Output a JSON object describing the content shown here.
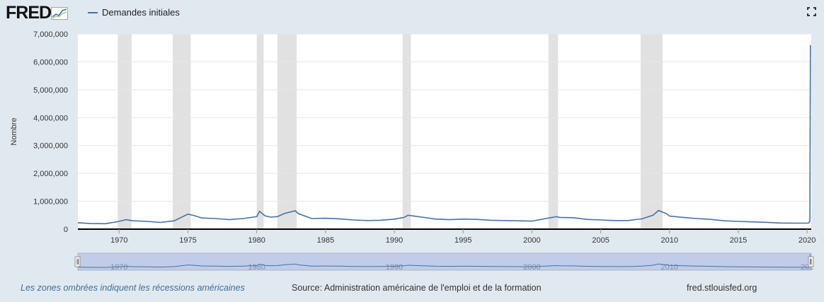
{
  "header": {
    "logo_text": "FRED",
    "legend_label": "Demandes initiales"
  },
  "footer": {
    "note": "Les zones ombrées indiquent les récessions américaines",
    "source": "Source: Administration américaine de l'emploi et de la formation",
    "site": "fred.stlouisfed.org"
  },
  "colors": {
    "series": "#4572a7",
    "recession": "#e1e1e1",
    "background": "#e1e9f0",
    "navigator_fill": "#c0cce8"
  },
  "icons": [
    "fred-logo-graph-icon",
    "fullscreen-icon",
    "navigator-handle-icon"
  ],
  "chart_data": {
    "type": "line",
    "title": "",
    "xlabel": "",
    "ylabel": "Nombre",
    "ylim": [
      0,
      7000000
    ],
    "xlim": [
      1967.0,
      2020.3
    ],
    "y_ticks": [
      "0",
      "1,000,000",
      "2,000,000",
      "3,000,000",
      "4,000,000",
      "5,000,000",
      "6,000,000",
      "7,000,000"
    ],
    "x_ticks": [
      "1970",
      "1975",
      "1980",
      "1985",
      "1990",
      "1995",
      "2000",
      "2005",
      "2010",
      "2015",
      "2020"
    ],
    "navigator_ticks": [
      "1970",
      "1980",
      "1990",
      "2000",
      "2010",
      "202"
    ],
    "grid": true,
    "legend_position": "top-left",
    "recessions": [
      [
        1969.9,
        1970.9
      ],
      [
        1973.9,
        1975.2
      ],
      [
        1980.0,
        1980.5
      ],
      [
        1981.5,
        1982.9
      ],
      [
        1990.6,
        1991.2
      ],
      [
        2001.2,
        2001.9
      ],
      [
        2007.9,
        2009.5
      ]
    ],
    "series": [
      {
        "name": "Demandes initiales",
        "points": [
          [
            1967.0,
            230000
          ],
          [
            1968.0,
            200000
          ],
          [
            1969.0,
            195000
          ],
          [
            1970.0,
            280000
          ],
          [
            1970.5,
            340000
          ],
          [
            1971.0,
            300000
          ],
          [
            1972.0,
            280000
          ],
          [
            1973.0,
            240000
          ],
          [
            1974.0,
            300000
          ],
          [
            1975.0,
            540000
          ],
          [
            1975.5,
            480000
          ],
          [
            1976.0,
            400000
          ],
          [
            1977.0,
            380000
          ],
          [
            1978.0,
            340000
          ],
          [
            1979.0,
            380000
          ],
          [
            1980.0,
            450000
          ],
          [
            1980.2,
            640000
          ],
          [
            1980.6,
            480000
          ],
          [
            1981.0,
            430000
          ],
          [
            1981.5,
            450000
          ],
          [
            1982.0,
            560000
          ],
          [
            1982.8,
            660000
          ],
          [
            1983.0,
            560000
          ],
          [
            1984.0,
            380000
          ],
          [
            1985.0,
            390000
          ],
          [
            1986.0,
            370000
          ],
          [
            1987.0,
            330000
          ],
          [
            1988.0,
            310000
          ],
          [
            1989.0,
            320000
          ],
          [
            1990.0,
            360000
          ],
          [
            1990.7,
            420000
          ],
          [
            1991.0,
            500000
          ],
          [
            1992.0,
            430000
          ],
          [
            1993.0,
            360000
          ],
          [
            1994.0,
            340000
          ],
          [
            1995.0,
            360000
          ],
          [
            1996.0,
            350000
          ],
          [
            1997.0,
            320000
          ],
          [
            1998.0,
            310000
          ],
          [
            1999.0,
            300000
          ],
          [
            2000.0,
            290000
          ],
          [
            2001.0,
            380000
          ],
          [
            2001.8,
            450000
          ],
          [
            2002.0,
            420000
          ],
          [
            2003.0,
            410000
          ],
          [
            2004.0,
            350000
          ],
          [
            2005.0,
            330000
          ],
          [
            2006.0,
            310000
          ],
          [
            2007.0,
            310000
          ],
          [
            2008.0,
            370000
          ],
          [
            2008.8,
            500000
          ],
          [
            2009.2,
            670000
          ],
          [
            2009.8,
            550000
          ],
          [
            2010.0,
            470000
          ],
          [
            2011.0,
            420000
          ],
          [
            2012.0,
            380000
          ],
          [
            2013.0,
            350000
          ],
          [
            2014.0,
            300000
          ],
          [
            2015.0,
            280000
          ],
          [
            2016.0,
            260000
          ],
          [
            2017.0,
            245000
          ],
          [
            2018.0,
            220000
          ],
          [
            2019.0,
            215000
          ],
          [
            2020.1,
            215000
          ],
          [
            2020.2,
            280000
          ],
          [
            2020.22,
            3300000
          ],
          [
            2020.24,
            6600000
          ]
        ]
      }
    ]
  }
}
